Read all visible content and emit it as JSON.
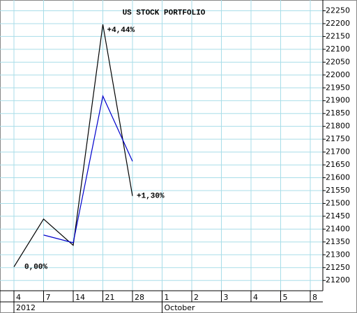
{
  "chart_data": {
    "type": "line",
    "title": "US STOCK PORTFOLIO",
    "categories": [
      "4",
      "7",
      "14",
      "21",
      "28",
      "1",
      "2",
      "3",
      "4",
      "5",
      "8"
    ],
    "period_labels": [
      "2012",
      null,
      null,
      null,
      null,
      "October",
      null,
      null,
      null,
      null,
      null
    ],
    "series": [
      {
        "color": "#000000",
        "values": [
          21253,
          21439,
          21337,
          22197,
          21529,
          null,
          null,
          null,
          null,
          null,
          null
        ],
        "value_labels": [
          "0,00%",
          null,
          null,
          "+4,44%",
          "+1,30%",
          null,
          null,
          null,
          null,
          null,
          null
        ]
      },
      {
        "color": "#0000cc",
        "values": [
          null,
          21377,
          21347,
          21918,
          21664,
          null,
          null,
          null,
          null,
          null,
          null
        ]
      }
    ],
    "ylim": [
      21160,
      22292
    ],
    "yticks": [
      21200,
      21250,
      21300,
      21350,
      21400,
      21450,
      21500,
      21550,
      21600,
      21650,
      21700,
      21750,
      21800,
      21850,
      21900,
      21950,
      22000,
      22050,
      22100,
      22150,
      22200,
      22250
    ],
    "grid": true,
    "grid_color": "#a8dde8"
  }
}
